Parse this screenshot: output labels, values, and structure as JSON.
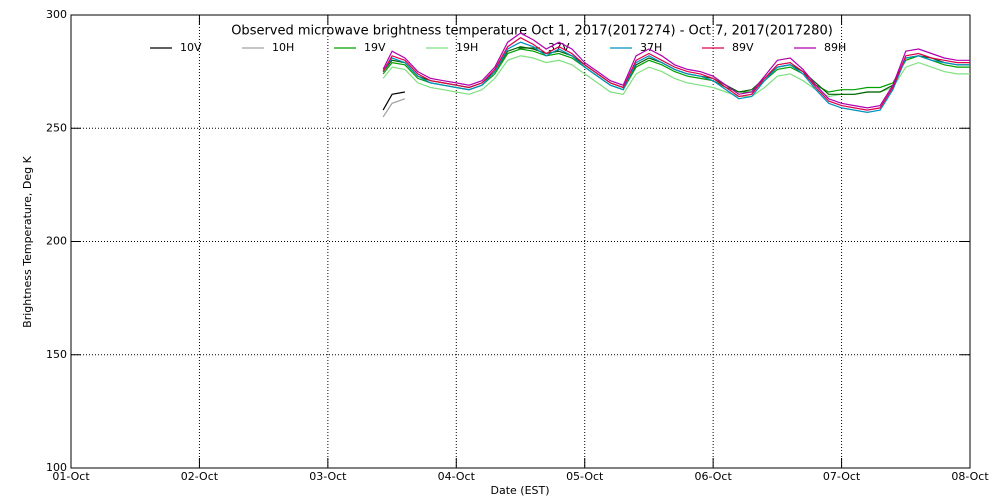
{
  "chart_data": {
    "type": "line",
    "title": "Observed microwave brightness temperature Oct  1, 2017(2017274) - Oct  7, 2017(2017280)",
    "xlabel": "Date (EST)",
    "ylabel": "Brightness Temperature, Deg K",
    "xlim": [
      0,
      7
    ],
    "ylim": [
      100,
      300
    ],
    "xticks": [
      {
        "value": 0,
        "label": "01-Oct"
      },
      {
        "value": 1,
        "label": "02-Oct"
      },
      {
        "value": 2,
        "label": "03-Oct"
      },
      {
        "value": 3,
        "label": "04-Oct"
      },
      {
        "value": 4,
        "label": "05-Oct"
      },
      {
        "value": 5,
        "label": "06-Oct"
      },
      {
        "value": 6,
        "label": "07-Oct"
      },
      {
        "value": 7,
        "label": "08-Oct"
      }
    ],
    "yticks": [
      100,
      150,
      200,
      250,
      300
    ],
    "grid": true,
    "x": [
      2.43,
      2.5,
      2.6,
      2.7,
      2.8,
      2.9,
      3.0,
      3.1,
      3.2,
      3.3,
      3.4,
      3.5,
      3.6,
      3.7,
      3.8,
      3.9,
      4.0,
      4.1,
      4.2,
      4.3,
      4.4,
      4.5,
      4.6,
      4.7,
      4.8,
      4.9,
      5.0,
      5.1,
      5.2,
      5.3,
      5.4,
      5.5,
      5.6,
      5.7,
      5.8,
      5.9,
      6.0,
      6.1,
      6.2,
      6.3,
      6.4,
      6.5,
      6.6,
      6.7,
      6.8,
      6.9,
      7.0
    ],
    "series": [
      {
        "name": "10V",
        "color": "#000000",
        "values": [
          258,
          265,
          266,
          null,
          null,
          null,
          null,
          null,
          null,
          null,
          null,
          null,
          null,
          null,
          null,
          null,
          null,
          null,
          null,
          null,
          null,
          null,
          null,
          null,
          null,
          null,
          null,
          null,
          null,
          null,
          null,
          null,
          null,
          null,
          null,
          null,
          null,
          null,
          null,
          null,
          null,
          null,
          null,
          null,
          null,
          null,
          null
        ]
      },
      {
        "name": "10H",
        "color": "#a0a0a0",
        "values": [
          255,
          261,
          263,
          null,
          null,
          null,
          null,
          null,
          null,
          null,
          null,
          null,
          null,
          null,
          null,
          null,
          null,
          null,
          null,
          null,
          null,
          null,
          null,
          null,
          null,
          null,
          null,
          null,
          null,
          null,
          null,
          null,
          null,
          null,
          null,
          null,
          null,
          null,
          null,
          null,
          null,
          null,
          null,
          null,
          null,
          null,
          null
        ]
      },
      {
        "name": "19V",
        "color": "#00a000",
        "values": [
          274,
          279,
          278,
          272,
          270,
          269,
          268,
          267,
          269,
          274,
          283,
          285,
          284,
          282,
          283,
          281,
          277,
          273,
          269,
          267,
          277,
          280,
          278,
          275,
          273,
          272,
          271,
          268,
          266,
          266,
          271,
          276,
          277,
          274,
          269,
          266,
          267,
          267,
          268,
          268,
          270,
          280,
          282,
          280,
          278,
          277,
          277
        ]
      },
      {
        "name": "19H",
        "color": "#80e080",
        "values": [
          272,
          277,
          276,
          270,
          268,
          267,
          266,
          265,
          267,
          272,
          280,
          282,
          281,
          279,
          280,
          278,
          274,
          270,
          266,
          265,
          274,
          277,
          275,
          272,
          270,
          269,
          268,
          266,
          264,
          264,
          268,
          273,
          274,
          271,
          267,
          264,
          265,
          265,
          266,
          266,
          268,
          277,
          279,
          277,
          275,
          274,
          274
        ]
      },
      {
        "name": "37V",
        "color": "#006000",
        "values": [
          275,
          280,
          279,
          273,
          271,
          270,
          269,
          268,
          270,
          275,
          284,
          286,
          285,
          283,
          284,
          282,
          278,
          274,
          270,
          268,
          278,
          281,
          279,
          276,
          274,
          273,
          272,
          269,
          266,
          267,
          272,
          277,
          278,
          275,
          270,
          265,
          265,
          265,
          266,
          266,
          269,
          281,
          282,
          281,
          279,
          278,
          278
        ]
      },
      {
        "name": "37H",
        "color": "#0090c0",
        "values": [
          275,
          281,
          279,
          273,
          270,
          269,
          268,
          267,
          269,
          275,
          285,
          288,
          286,
          282,
          285,
          282,
          277,
          273,
          269,
          267,
          279,
          282,
          279,
          276,
          274,
          273,
          271,
          267,
          263,
          264,
          271,
          277,
          278,
          274,
          267,
          261,
          259,
          258,
          257,
          258,
          267,
          281,
          282,
          280,
          279,
          278,
          278
        ]
      },
      {
        "name": "89V",
        "color": "#e0004a",
        "values": [
          275,
          282,
          280,
          274,
          271,
          270,
          269,
          268,
          270,
          276,
          286,
          290,
          287,
          283,
          286,
          283,
          278,
          274,
          270,
          268,
          280,
          283,
          280,
          277,
          275,
          274,
          272,
          268,
          264,
          265,
          272,
          278,
          279,
          275,
          268,
          262,
          260,
          259,
          258,
          259,
          268,
          282,
          283,
          281,
          280,
          279,
          279
        ]
      },
      {
        "name": "89H",
        "color": "#b000b0",
        "values": [
          276,
          284,
          281,
          275,
          272,
          271,
          270,
          269,
          271,
          277,
          288,
          292,
          289,
          285,
          288,
          285,
          279,
          275,
          271,
          269,
          282,
          285,
          282,
          278,
          276,
          275,
          273,
          269,
          265,
          266,
          273,
          280,
          281,
          276,
          269,
          263,
          261,
          260,
          259,
          260,
          269,
          284,
          285,
          283,
          281,
          280,
          280
        ]
      }
    ]
  }
}
